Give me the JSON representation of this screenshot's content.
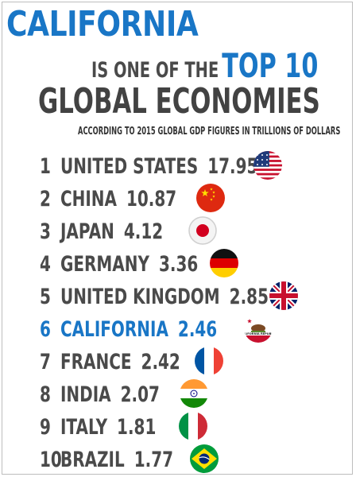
{
  "title": {
    "line1": "CALIFORNIA",
    "line2_pre": "IS ONE OF THE",
    "line2_highlight": "TOP 10",
    "line3": "GLOBAL ECONOMIES",
    "subtitle": "ACCORDING TO 2015 GLOBAL GDP FIGURES IN TRILLIONS OF DOLLARS"
  },
  "colors": {
    "accent": "#1976c6",
    "text": "#4a4a4a"
  },
  "chart_data": {
    "type": "table",
    "title": "CALIFORNIA IS ONE OF THE TOP 10 GLOBAL ECONOMIES",
    "subtitle": "ACCORDING TO 2015 GLOBAL GDP FIGURES IN TRILLIONS OF DOLLARS",
    "columns": [
      "rank",
      "name",
      "gdp"
    ],
    "rows": [
      {
        "rank": "1",
        "name": "UNITED STATES",
        "gdp": "17.95",
        "value": 17.95,
        "flag": "us-flag-icon",
        "highlight": false
      },
      {
        "rank": "2",
        "name": "CHINA",
        "gdp": "10.87",
        "value": 10.87,
        "flag": "china-flag-icon",
        "highlight": false
      },
      {
        "rank": "3",
        "name": "JAPAN",
        "gdp": "4.12",
        "value": 4.12,
        "flag": "japan-flag-icon",
        "highlight": false
      },
      {
        "rank": "4",
        "name": "GERMANY",
        "gdp": "3.36",
        "value": 3.36,
        "flag": "germany-flag-icon",
        "highlight": false
      },
      {
        "rank": "5",
        "name": "UNITED KINGDOM",
        "gdp": "2.85",
        "value": 2.85,
        "flag": "uk-flag-icon",
        "highlight": false
      },
      {
        "rank": "6",
        "name": "CALIFORNIA",
        "gdp": "2.46",
        "value": 2.46,
        "flag": "california-flag-icon",
        "highlight": true,
        "flag_text": "CALIFORNIA REPUBLIC"
      },
      {
        "rank": "7",
        "name": "FRANCE",
        "gdp": "2.42",
        "value": 2.42,
        "flag": "france-flag-icon",
        "highlight": false
      },
      {
        "rank": "8",
        "name": "INDIA",
        "gdp": "2.07",
        "value": 2.07,
        "flag": "india-flag-icon",
        "highlight": false
      },
      {
        "rank": "9",
        "name": "ITALY",
        "gdp": "1.81",
        "value": 1.81,
        "flag": "italy-flag-icon",
        "highlight": false
      },
      {
        "rank": "10",
        "name": "BRAZIL",
        "gdp": "1.77",
        "value": 1.77,
        "flag": "brazil-flag-icon",
        "highlight": false
      }
    ]
  }
}
